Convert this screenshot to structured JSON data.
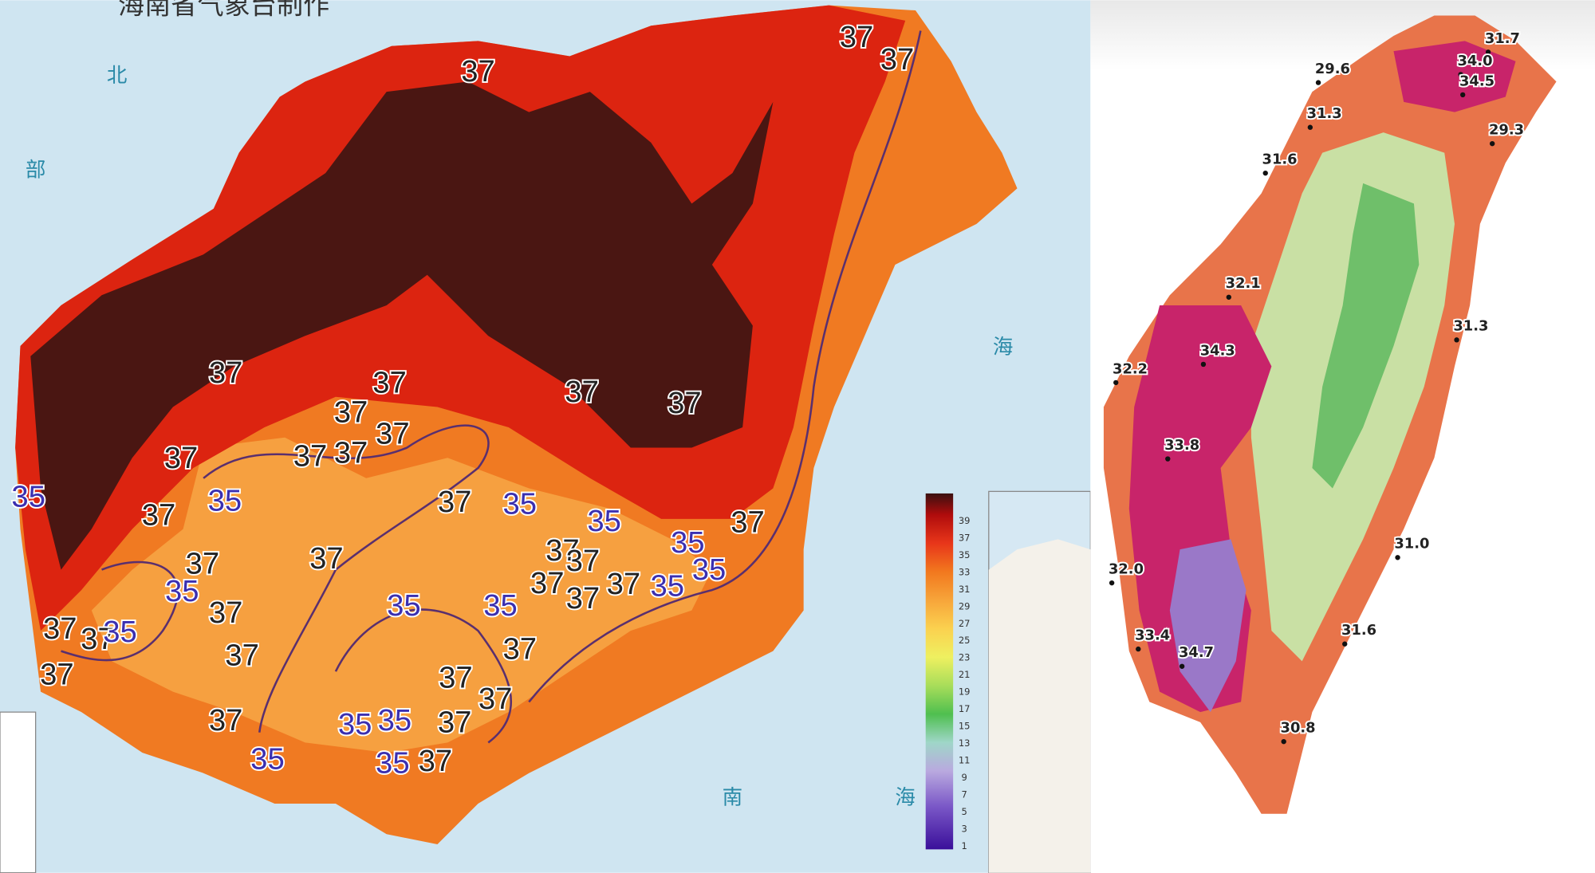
{
  "hainan": {
    "title": "海南省气象台制作",
    "sea_labels": [
      "北",
      "部",
      "海",
      "南",
      "海"
    ],
    "isotherm_labels": [
      "37",
      "37",
      "37",
      "37",
      "37",
      "37",
      "37",
      "37",
      "37",
      "37",
      "37",
      "37",
      "37",
      "37",
      "37",
      "37",
      "37",
      "37",
      "37",
      "37",
      "37",
      "37",
      "37",
      "37",
      "37",
      "37",
      "37",
      "37",
      "37",
      "37",
      "37",
      "37",
      "37",
      "35",
      "35",
      "35",
      "35",
      "35",
      "35",
      "35",
      "35",
      "35",
      "35",
      "35",
      "35",
      "35",
      "35",
      "35"
    ],
    "legend_ticks": [
      "39",
      "37",
      "35",
      "33",
      "31",
      "29",
      "27",
      "25",
      "23",
      "21",
      "19",
      "17",
      "15",
      "13",
      "11",
      "9",
      "7",
      "5",
      "3",
      "1"
    ]
  },
  "taiwan": {
    "stations": [
      "31.7",
      "29.6",
      "34.0",
      "34.5",
      "31.3",
      "29.3",
      "31.6",
      "32.1",
      "31.3",
      "34.3",
      "32.2",
      "33.8",
      "31.0",
      "32.0",
      "31.6",
      "33.4",
      "34.7",
      "30.8"
    ]
  }
}
